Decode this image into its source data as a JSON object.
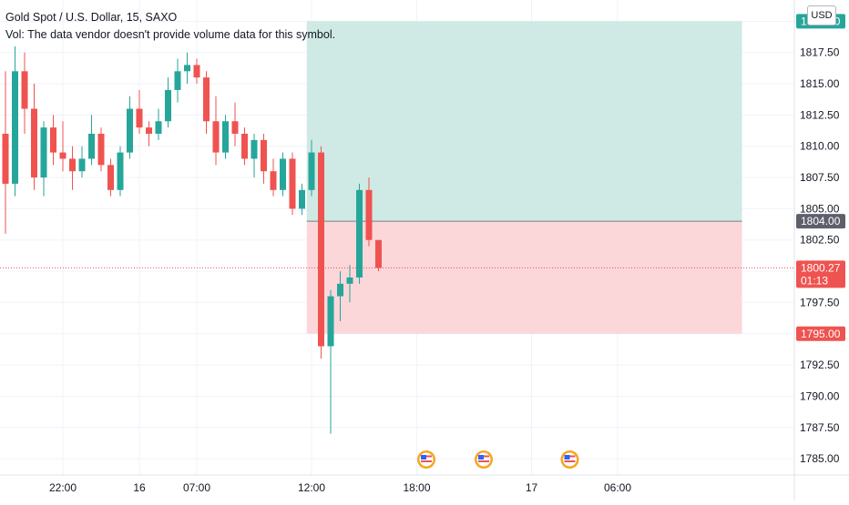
{
  "legend": {
    "symbol": "Gold Spot / U.S. Dollar, 15, SAXO",
    "volume_note": "Vol: The data vendor doesn't provide volume data for this symbol."
  },
  "currency": "USD",
  "colors": {
    "up": "#26a69a",
    "down": "#ef5350",
    "profit_zone": "#cfe9e4",
    "loss_zone": "#fbd7da",
    "grid": "#f0f3fa",
    "axis_text": "#131722",
    "badge_text": "#ffffff"
  },
  "chart_data": {
    "type": "candlestick",
    "ylim": [
      1783.7,
      1821.7
    ],
    "y_ticks": [
      "1785.00",
      "1787.50",
      "1790.00",
      "1792.50",
      "1795.00",
      "1797.50",
      "1800.00",
      "1802.50",
      "1805.00",
      "1807.50",
      "1810.00",
      "1812.50",
      "1815.00",
      "1817.50",
      "1820.00"
    ],
    "x_ticks": [
      {
        "label": "22:00",
        "t": 6
      },
      {
        "label": "16",
        "t": 14
      },
      {
        "label": "07:00",
        "t": 20
      },
      {
        "label": "12:00",
        "t": 32
      },
      {
        "label": "18:00",
        "t": 43
      },
      {
        "label": "17",
        "t": 55
      },
      {
        "label": "06:00",
        "t": 64
      }
    ],
    "candles": [
      [
        1811.0,
        1816.0,
        1803.0,
        1807.0
      ],
      [
        1807.0,
        1818.0,
        1806.0,
        1816.0
      ],
      [
        1816.0,
        1817.5,
        1811.0,
        1813.0
      ],
      [
        1813.0,
        1815.0,
        1806.5,
        1807.5
      ],
      [
        1807.5,
        1812.0,
        1806.0,
        1811.5
      ],
      [
        1811.5,
        1812.5,
        1808.5,
        1809.5
      ],
      [
        1809.5,
        1812.0,
        1808.0,
        1809.0
      ],
      [
        1809.0,
        1810.0,
        1806.5,
        1808.0
      ],
      [
        1808.0,
        1810.0,
        1807.5,
        1809.0
      ],
      [
        1809.0,
        1812.5,
        1808.5,
        1811.0
      ],
      [
        1811.0,
        1811.5,
        1808.0,
        1808.5
      ],
      [
        1808.5,
        1809.0,
        1806.0,
        1806.5
      ],
      [
        1806.5,
        1810.0,
        1806.0,
        1809.5
      ],
      [
        1809.5,
        1814.0,
        1809.0,
        1813.0
      ],
      [
        1813.0,
        1814.5,
        1811.0,
        1811.5
      ],
      [
        1811.5,
        1812.0,
        1810.0,
        1811.0
      ],
      [
        1811.0,
        1813.0,
        1810.5,
        1812.0
      ],
      [
        1812.0,
        1815.5,
        1811.5,
        1814.5
      ],
      [
        1814.5,
        1817.0,
        1813.5,
        1816.0
      ],
      [
        1816.0,
        1817.5,
        1815.0,
        1816.5
      ],
      [
        1816.5,
        1817.0,
        1815.0,
        1815.5
      ],
      [
        1815.5,
        1816.0,
        1811.0,
        1812.0
      ],
      [
        1812.0,
        1814.0,
        1808.5,
        1809.5
      ],
      [
        1809.5,
        1812.5,
        1809.0,
        1812.0
      ],
      [
        1812.0,
        1813.5,
        1810.0,
        1811.0
      ],
      [
        1811.0,
        1811.5,
        1808.5,
        1809.0
      ],
      [
        1809.0,
        1811.0,
        1807.5,
        1810.5
      ],
      [
        1810.5,
        1811.0,
        1807.0,
        1808.0
      ],
      [
        1808.0,
        1809.0,
        1806.0,
        1806.5
      ],
      [
        1806.5,
        1809.5,
        1806.0,
        1809.0
      ],
      [
        1809.0,
        1809.5,
        1804.5,
        1805.0
      ],
      [
        1805.0,
        1807.0,
        1804.5,
        1806.5
      ],
      [
        1806.5,
        1810.5,
        1806.0,
        1809.5
      ],
      [
        1809.5,
        1810.0,
        1793.0,
        1794.0
      ],
      [
        1794.0,
        1798.5,
        1787.0,
        1798.0
      ],
      [
        1798.0,
        1800.0,
        1796.0,
        1799.0
      ],
      [
        1799.0,
        1800.5,
        1797.5,
        1799.5
      ],
      [
        1799.5,
        1807.0,
        1799.0,
        1806.5
      ],
      [
        1806.5,
        1807.5,
        1802.0,
        1802.5
      ],
      [
        1802.5,
        1802.5,
        1800.0,
        1800.27
      ]
    ],
    "positions": {
      "t_start": 32,
      "t_end": 77,
      "entry": 1804.0,
      "target": 1820.0,
      "stop": 1795.0
    },
    "last_price": 1800.27,
    "price_badges": [
      {
        "label": "1820.00",
        "value": 1820.0,
        "kind": "profit"
      },
      {
        "label": "1804.00",
        "value": 1804.0,
        "kind": "entry"
      },
      {
        "label": "1800.27",
        "sub": "01:13",
        "value": 1800.27,
        "kind": "last"
      },
      {
        "label": "1795.00",
        "value": 1795.0,
        "kind": "loss"
      }
    ],
    "events": [
      {
        "t": 44,
        "icon": "us-flag-event-icon"
      },
      {
        "t": 50,
        "icon": "us-flag-event-icon"
      },
      {
        "t": 59,
        "icon": "us-flag-event-icon"
      }
    ]
  }
}
